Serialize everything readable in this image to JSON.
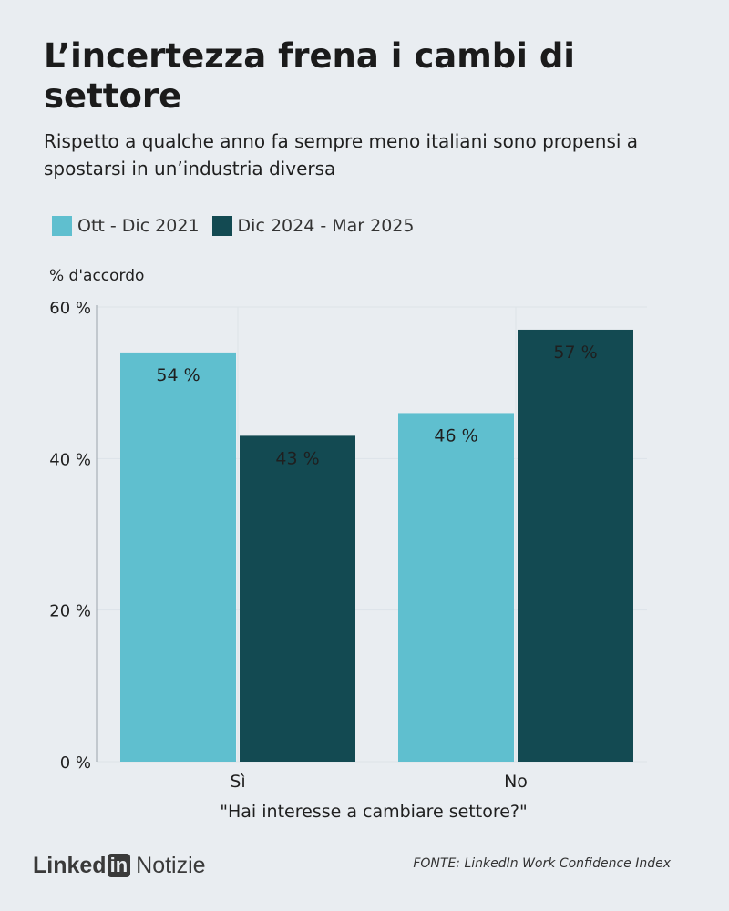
{
  "header": {
    "title": "L’incertezza frena i cambi di settore",
    "subtitle": "Rispetto a qualche anno fa sempre meno italiani sono propensi a spostarsi in un’industria diversa"
  },
  "footer": {
    "logo_word": "Linked",
    "logo_in": "in",
    "logo_section": "Notizie",
    "source": "FONTE: LinkedIn Work Confidence Index"
  },
  "colors": {
    "series1": "#5fbfcf",
    "series2": "#134a52",
    "background": "#e9edf1",
    "grid": "#dde3e8"
  },
  "chart_data": {
    "type": "bar",
    "title": "L’incertezza frena i cambi di settore",
    "ylabel": "% d'accordo",
    "xlabel": "\"Hai interesse a cambiare settore?\"",
    "categories": [
      "Sì",
      "No"
    ],
    "series": [
      {
        "name": "Ott - Dic 2021",
        "values": [
          54,
          46
        ],
        "labels": [
          "54 %",
          "46 %"
        ]
      },
      {
        "name": "Dic 2024 - Mar 2025",
        "values": [
          43,
          57
        ],
        "labels": [
          "43 %",
          "57 %"
        ]
      }
    ],
    "ylim": [
      0,
      60
    ],
    "yticks": [
      0,
      20,
      40,
      60
    ],
    "ytick_labels": [
      "0 %",
      "20 %",
      "40 %",
      "60 %"
    ],
    "legend_position": "top-left",
    "grid": true
  }
}
